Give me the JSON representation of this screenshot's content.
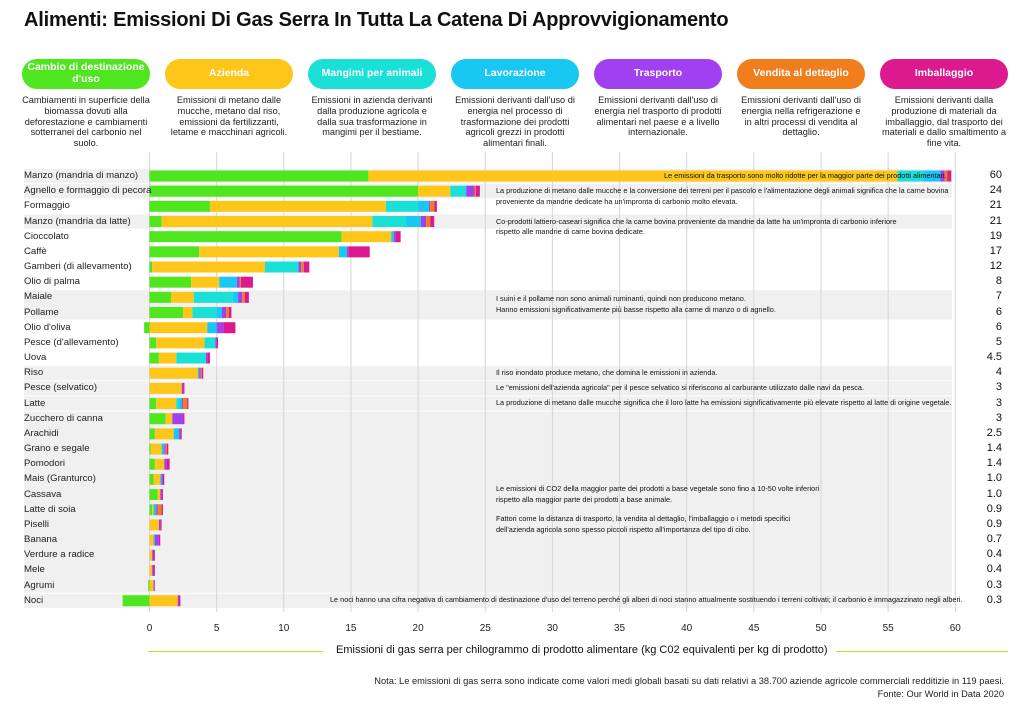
{
  "title": "Alimenti: Emissioni Di Gas Serra In Tutta La Catena Di Approvvigionamento",
  "categories": [
    {
      "label": "Cambio di destinazione d'uso",
      "color": "#4fe61f",
      "desc": "Cambiamenti in superficie della biomassa dovuti alla deforestazione e cambiamenti sotterranei del carbonio nel suolo."
    },
    {
      "label": "Azienda",
      "color": "#ffc61a",
      "desc": "Emissioni di metano dalle mucche, metano dal riso, emissioni da fertilizzanti, letame e macchinari agricoli."
    },
    {
      "label": "Mangimi per animali",
      "color": "#1ae0d8",
      "desc": "Emissioni in azienda derivanti dalla produzione agricola e dalla sua trasformazione in mangimi per il bestiame."
    },
    {
      "label": "Lavorazione",
      "color": "#18c8f2",
      "desc": "Emissioni derivanti dall'uso di energia nel processo di trasformazione dei prodotti agricoli grezzi in prodotti alimentari finali."
    },
    {
      "label": "Trasporto",
      "color": "#a040f0",
      "desc": "Emissioni derivanti dall'uso di energia nel trasporto di prodotti alimentari nel paese e a livello internazionale."
    },
    {
      "label": "Vendita al dettaglio",
      "color": "#f07e1c",
      "desc": "Emissioni derivanti dall'uso di energia nella refrigerazione e in altri processi di vendita al dettaglio."
    },
    {
      "label": "Imballaggio",
      "color": "#dc1a8e",
      "desc": "Emissioni derivanti dalla produzione di materiali da imballaggio, dal trasporto dei materiali e dallo smaltimento a fine vita."
    }
  ],
  "chart_data": {
    "type": "bar",
    "orientation": "horizontal",
    "stacked": true,
    "xlabel": "Emissioni di gas serra per chilogrammo di prodotto alimentare (kg C02 equivalenti per kg di prodotto)",
    "xlim": [
      -2,
      60
    ],
    "xticks": [
      0,
      5,
      10,
      15,
      20,
      25,
      30,
      35,
      40,
      45,
      50,
      55,
      60
    ],
    "grid": true,
    "series_order": [
      "Cambio di destinazione d'uso",
      "Azienda",
      "Mangimi per animali",
      "Lavorazione",
      "Trasporto",
      "Vendita al dettaglio",
      "Imballaggio"
    ],
    "foods": [
      {
        "name": "Manzo (mandria di manzo)",
        "total_label": "60",
        "values": [
          16.3,
          39.4,
          1.9,
          1.3,
          0.3,
          0.2,
          0.3
        ]
      },
      {
        "name": "Agnello e formaggio di pecora",
        "total_label": "24",
        "values": [
          20.0,
          2.4,
          1.1,
          0.1,
          0.6,
          0.1,
          0.3
        ]
      },
      {
        "name": "Formaggio",
        "total_label": "21",
        "values": [
          4.5,
          13.1,
          2.4,
          0.8,
          0.1,
          0.3,
          0.2
        ]
      },
      {
        "name": "Manzo (mandria da latte)",
        "total_label": "21",
        "values": [
          0.9,
          15.7,
          2.5,
          1.1,
          0.4,
          0.3,
          0.3
        ]
      },
      {
        "name": "Cioccolato",
        "total_label": "19",
        "values": [
          14.3,
          3.7,
          0.0,
          0.2,
          0.1,
          0.0,
          0.4
        ]
      },
      {
        "name": "Caffè",
        "total_label": "17",
        "values": [
          3.7,
          10.4,
          0.0,
          0.6,
          0.1,
          0.0,
          1.6
        ]
      },
      {
        "name": "Gamberi (di allevamento)",
        "total_label": "12",
        "values": [
          0.2,
          8.4,
          2.5,
          0.0,
          0.2,
          0.2,
          0.4
        ]
      },
      {
        "name": "Olio di palma",
        "total_label": "8",
        "values": [
          3.1,
          2.1,
          0.0,
          1.3,
          0.2,
          0.1,
          0.9
        ]
      },
      {
        "name": "Maiale",
        "total_label": "7",
        "values": [
          1.6,
          1.7,
          2.9,
          0.4,
          0.3,
          0.2,
          0.3
        ]
      },
      {
        "name": "Pollame",
        "total_label": "6",
        "values": [
          2.5,
          0.7,
          1.8,
          0.4,
          0.3,
          0.2,
          0.2
        ]
      },
      {
        "name": "Olio d'oliva",
        "total_label": "6",
        "values": [
          -0.4,
          4.3,
          0.0,
          0.7,
          0.5,
          0.0,
          0.9
        ]
      },
      {
        "name": "Pesce (d'allevamento)",
        "total_label": "5",
        "values": [
          0.5,
          3.6,
          0.8,
          0.0,
          0.1,
          0.0,
          0.1
        ]
      },
      {
        "name": "Uova",
        "total_label": "4.5",
        "values": [
          0.7,
          1.3,
          2.2,
          0.0,
          0.1,
          0.0,
          0.2
        ]
      },
      {
        "name": "Riso",
        "total_label": "4",
        "values": [
          0.0,
          3.6,
          0.0,
          0.1,
          0.1,
          0.1,
          0.1
        ]
      },
      {
        "name": "Pesce (selvatico)",
        "total_label": "3",
        "values": [
          0.0,
          2.4,
          0.0,
          0.0,
          0.1,
          0.0,
          0.1
        ]
      },
      {
        "name": "Latte",
        "total_label": "3",
        "values": [
          0.5,
          1.5,
          0.2,
          0.2,
          0.1,
          0.3,
          0.1
        ]
      },
      {
        "name": "Zucchero di canna",
        "total_label": "3",
        "values": [
          1.2,
          0.5,
          0.0,
          0.0,
          0.8,
          0.0,
          0.1
        ]
      },
      {
        "name": "Arachidi",
        "total_label": "2.5",
        "values": [
          0.4,
          1.4,
          0.0,
          0.4,
          0.1,
          0.0,
          0.1
        ]
      },
      {
        "name": "Grano e segale",
        "total_label": "1.4",
        "values": [
          0.1,
          0.8,
          0.0,
          0.2,
          0.1,
          0.1,
          0.1
        ]
      },
      {
        "name": "Pomodori",
        "total_label": "1.4",
        "values": [
          0.4,
          0.7,
          0.0,
          0.0,
          0.2,
          0.0,
          0.2
        ]
      },
      {
        "name": "Mais (Granturco)",
        "total_label": "1.0",
        "values": [
          0.3,
          0.5,
          0.0,
          0.1,
          0.1,
          0.0,
          0.1
        ]
      },
      {
        "name": "Cassava",
        "total_label": "1.0",
        "values": [
          0.6,
          0.2,
          0.0,
          0.0,
          0.1,
          0.0,
          0.1
        ]
      },
      {
        "name": "Latte di soia",
        "total_label": "0.9",
        "values": [
          0.2,
          0.1,
          0.0,
          0.2,
          0.1,
          0.3,
          0.1
        ]
      },
      {
        "name": "Piselli",
        "total_label": "0.9",
        "values": [
          0.0,
          0.7,
          0.0,
          0.0,
          0.1,
          0.0,
          0.1
        ]
      },
      {
        "name": "Banana",
        "total_label": "0.7",
        "values": [
          0.0,
          0.3,
          0.0,
          0.1,
          0.3,
          0.0,
          0.1
        ]
      },
      {
        "name": "Verdure a radice",
        "total_label": "0.4",
        "values": [
          0.0,
          0.2,
          0.0,
          0.0,
          0.1,
          0.0,
          0.1
        ]
      },
      {
        "name": "Mele",
        "total_label": "0.4",
        "values": [
          0.0,
          0.2,
          0.0,
          0.0,
          0.1,
          0.0,
          0.1
        ]
      },
      {
        "name": "Agrumi",
        "total_label": "0.3",
        "values": [
          -0.1,
          0.3,
          0.0,
          0.0,
          0.1,
          0.0,
          0.0
        ]
      },
      {
        "name": "Noci",
        "total_label": "0.3",
        "values": [
          -2.0,
          2.1,
          0.0,
          0.0,
          0.1,
          0.0,
          0.1
        ]
      }
    ],
    "notes": [
      {
        "row_start": 0,
        "row_end": 0,
        "lines": [
          "Le emissioni da trasporto sono molto ridotte per la maggior parte dei prodotti alimentari."
        ]
      },
      {
        "row_start": 1,
        "row_end": 1,
        "lines": [
          "La produzione di metano dalle mucche e la conversione dei terreni per il pascolo e l'alimentazione degli animali significa che la carne bovina",
          "proveniente da mandrie dedicate ha un'impronta di carbonio molto elevata."
        ]
      },
      {
        "row_start": 3,
        "row_end": 3,
        "lines": [
          "Co-prodotti lattiero-caseari significa che la carne bovina proveniente da mandrie da latte ha un'impronta di carbonio inferiore",
          "rispetto alle mandrie di carne bovina dedicate."
        ]
      },
      {
        "row_start": 8,
        "row_end": 9,
        "lines": [
          "I suini e il pollame non sono animali ruminanti, quindi non producono metano.",
          "Hanno emissioni significativamente più basse rispetto alla carne di manzo o di agnello."
        ]
      },
      {
        "row_start": 13,
        "row_end": 13,
        "lines": [
          "Il riso inondato produce metano, che domina le emissioni in azienda."
        ]
      },
      {
        "row_start": 14,
        "row_end": 14,
        "lines": [
          "Le \"emissioni dell'azienda agricola\" per il pesce selvatico si riferiscono al carburante utilizzato dalle navi da pesca."
        ]
      },
      {
        "row_start": 15,
        "row_end": 15,
        "lines": [
          "La produzione di metano dalle mucche significa che il loro latte ha emissioni significativamente più elevate rispetto al latte di origine vegetale."
        ]
      },
      {
        "row_start": 16,
        "row_end": 27,
        "lines": []
      },
      {
        "row_start": 21,
        "row_end": 21,
        "lines": [
          "Le emissioni di CO2 della maggior parte dei prodotti a base vegetale sono fino a 10-50 volte inferiori",
          "rispetto alla maggior parte dei prodotti a base animale."
        ]
      },
      {
        "row_start": 23,
        "row_end": 23,
        "lines": [
          "Fattori come la distanza di trasporto, la vendita al dettaglio, l'imballaggio o i metodi specifici",
          "dell'azienda agricola sono spesso piccoli rispetto all'importanza del tipo di cibo."
        ]
      },
      {
        "row_start": 28,
        "row_end": 28,
        "lines": [
          "Le noci hanno una cifra negativa di cambiamento di destinazione d'uso del terreno perché gli alberi di noci stanno attualmente sostituendo i terreni coltivati; il carbonio è immagazzinato negli alberi."
        ]
      }
    ]
  },
  "footnotes": [
    "Nota: Le emissioni di gas serra sono indicate come valori medi globali basati su dati relativi a 38.700 aziende agricole commerciali redditizie in 119 paesi.",
    "Fonte: Our World in Data 2020"
  ]
}
